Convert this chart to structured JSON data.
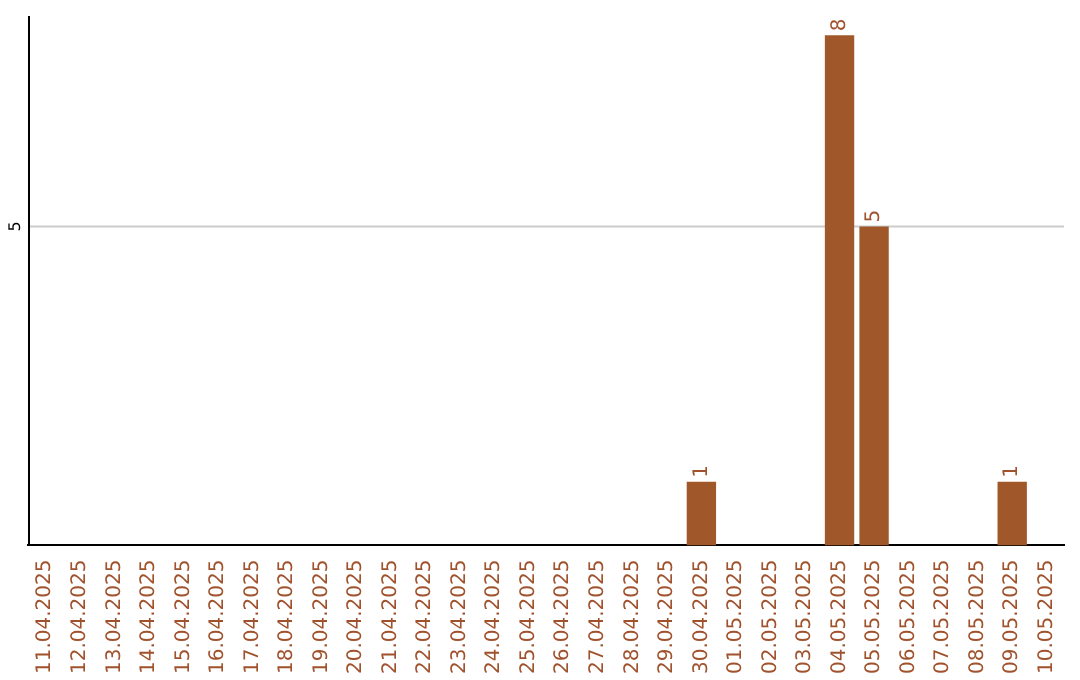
{
  "chart_data": {
    "type": "bar",
    "categories": [
      "11.04.2025",
      "12.04.2025",
      "13.04.2025",
      "14.04.2025",
      "15.04.2025",
      "16.04.2025",
      "17.04.2025",
      "18.04.2025",
      "19.04.2025",
      "20.04.2025",
      "21.04.2025",
      "22.04.2025",
      "23.04.2025",
      "24.04.2025",
      "25.04.2025",
      "26.04.2025",
      "27.04.2025",
      "28.04.2025",
      "29.04.2025",
      "30.04.2025",
      "01.05.2025",
      "02.05.2025",
      "03.05.2025",
      "04.05.2025",
      "05.05.2025",
      "06.05.2025",
      "07.05.2025",
      "08.05.2025",
      "09.05.2025",
      "10.05.2025"
    ],
    "values": [
      null,
      null,
      null,
      null,
      null,
      null,
      null,
      null,
      null,
      null,
      null,
      null,
      null,
      null,
      null,
      null,
      null,
      null,
      null,
      1,
      null,
      null,
      null,
      8,
      5,
      null,
      null,
      null,
      1,
      null
    ],
    "value_labels": [
      null,
      null,
      null,
      null,
      null,
      null,
      null,
      null,
      null,
      null,
      null,
      null,
      null,
      null,
      null,
      null,
      null,
      null,
      null,
      "1",
      null,
      null,
      null,
      "8",
      "5",
      null,
      null,
      null,
      "1",
      null
    ],
    "ylim": [
      0,
      8.3
    ],
    "ref_lines": [
      {
        "axis": "y",
        "value": 5,
        "label": "5",
        "color": "#cccccc"
      }
    ],
    "color": "#a0572a",
    "legend": false
  }
}
